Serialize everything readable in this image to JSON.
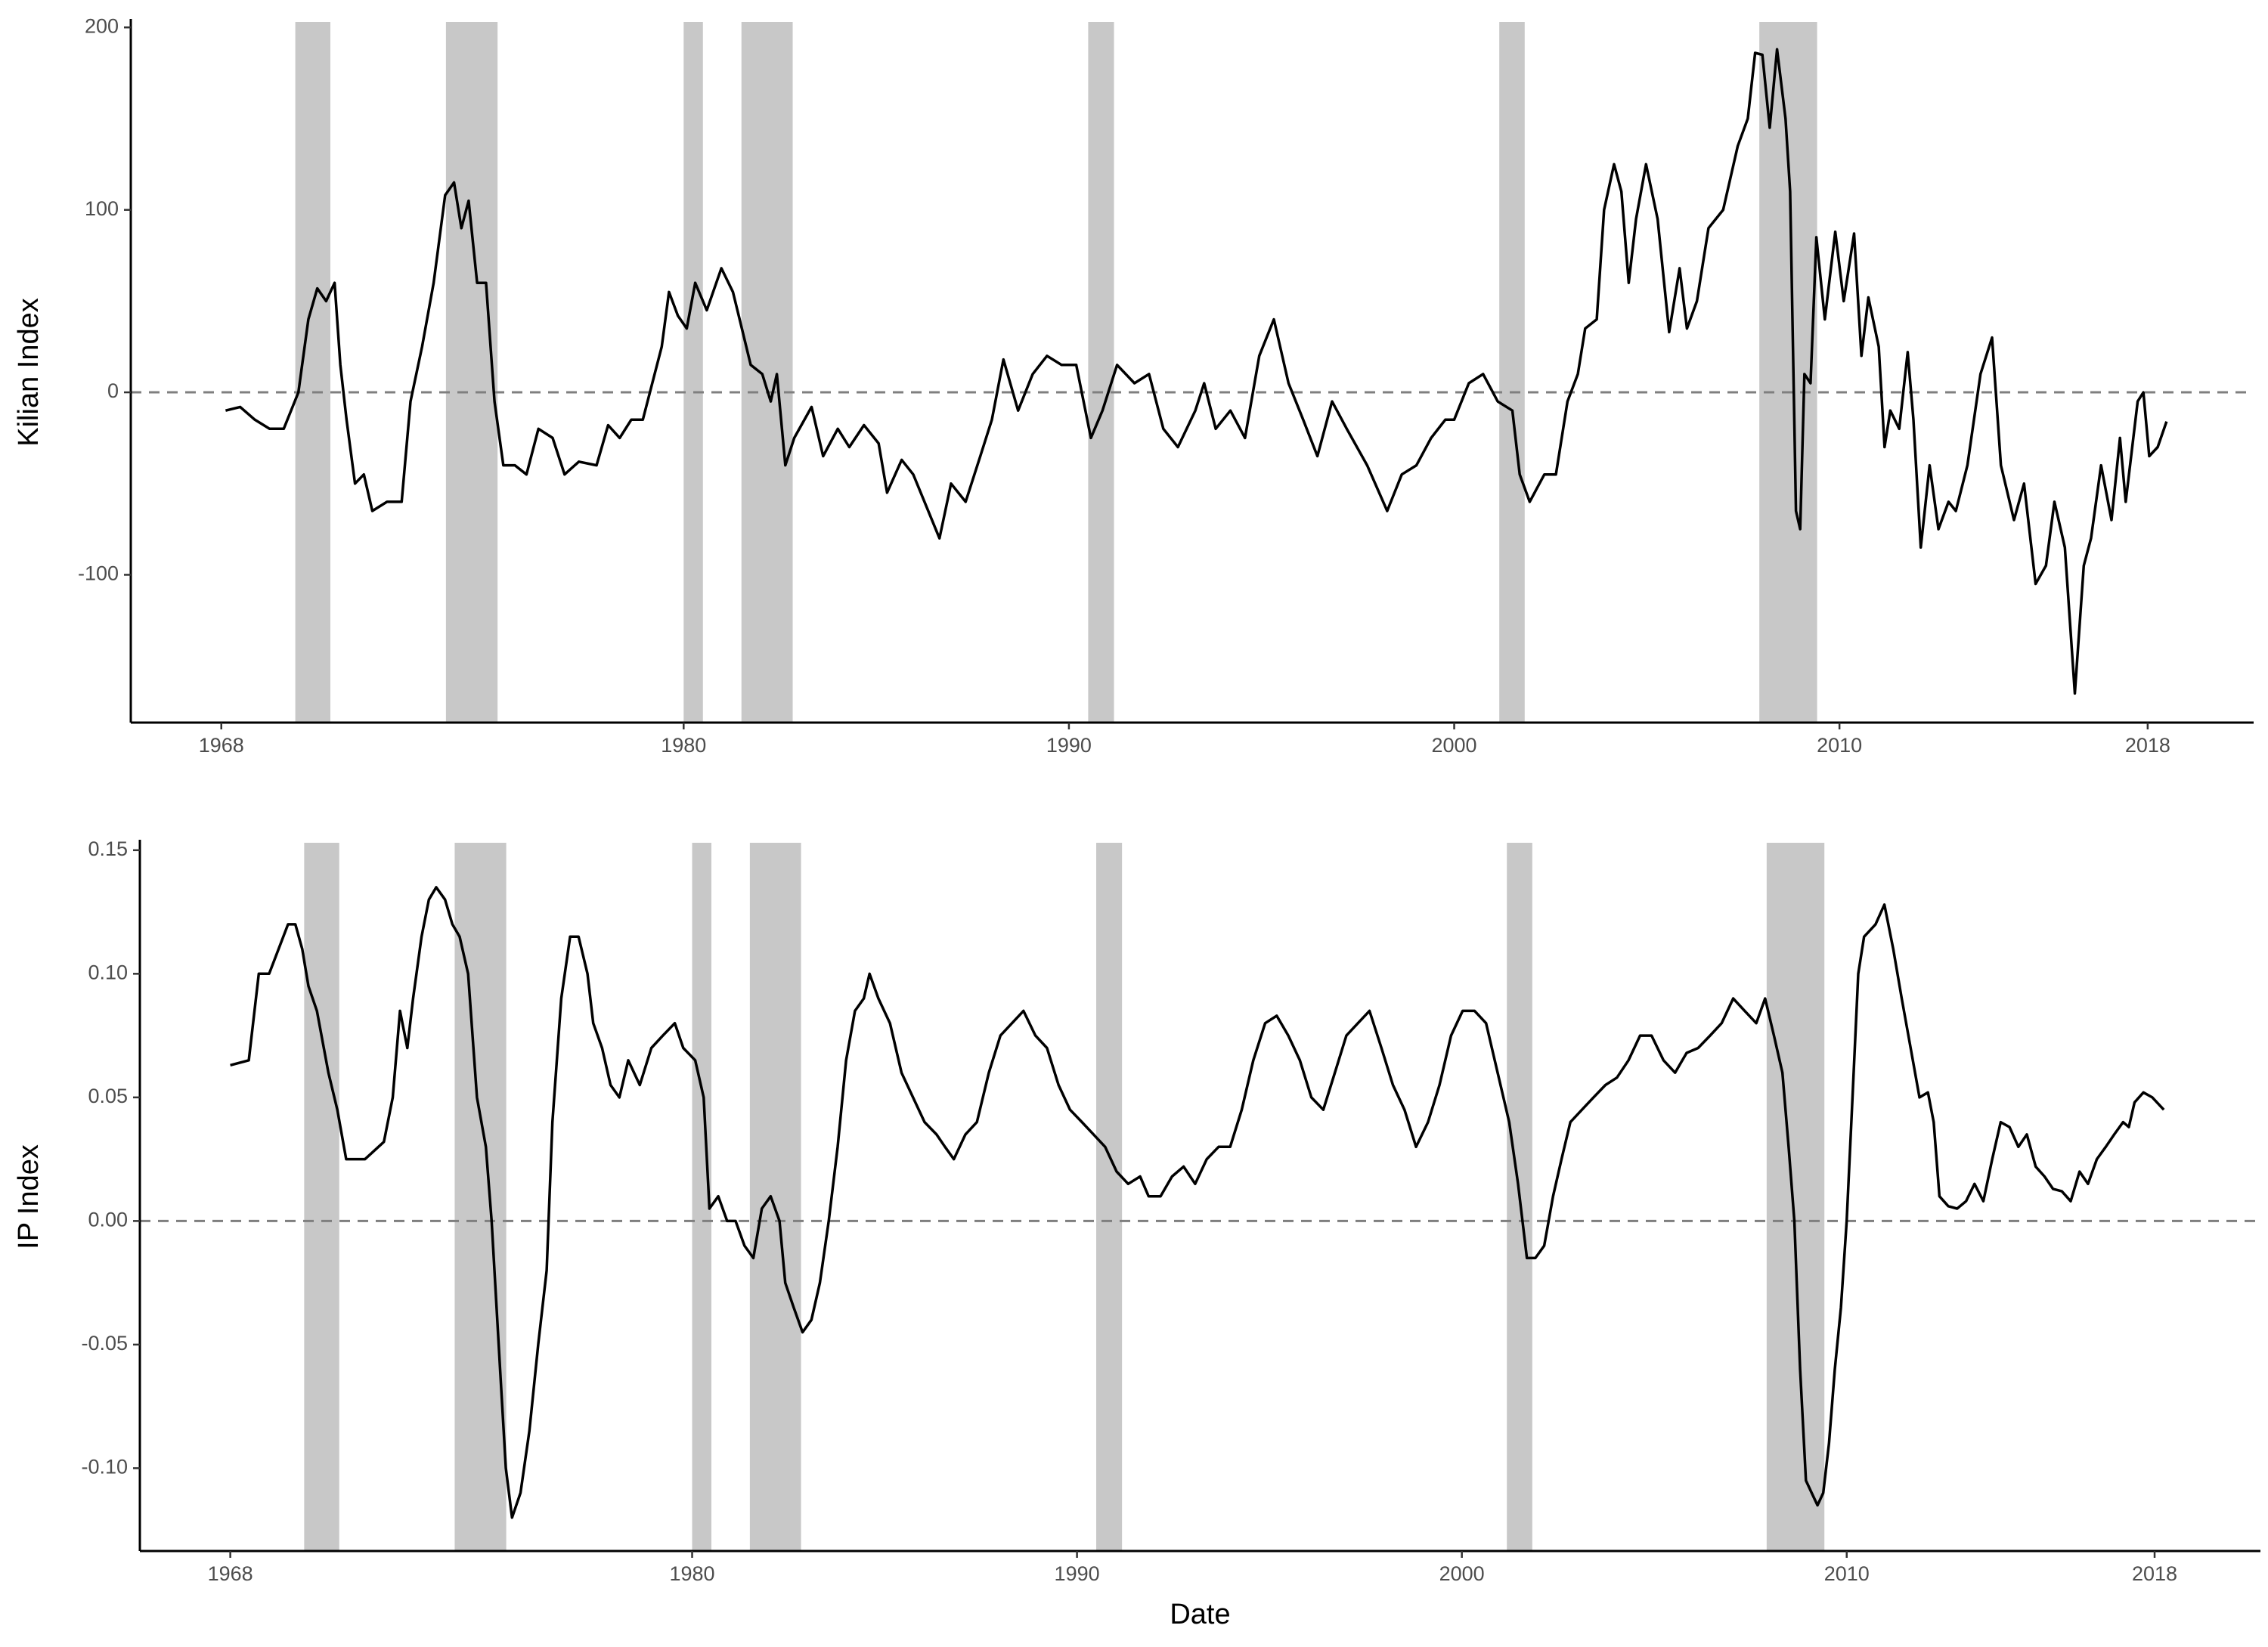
{
  "chart_data": [
    {
      "type": "line",
      "ylabel": "Kilian Index",
      "xlim": [
        1965.65,
        2020.75
      ],
      "xticks": [
        1968,
        1980,
        1990,
        2000,
        2010,
        2018
      ],
      "ylim": [
        -181,
        203
      ],
      "yticks": [
        -100,
        0,
        100,
        200
      ],
      "reference_line": 0,
      "shade_color": "#c8c8c8",
      "shaded_periods": [
        [
          1969.92,
          1970.83
        ],
        [
          1973.83,
          1975.17
        ],
        [
          1980.0,
          1980.5
        ],
        [
          1981.5,
          1982.83
        ],
        [
          1990.5,
          1991.17
        ],
        [
          2001.17,
          2001.83
        ],
        [
          2007.92,
          2009.42
        ]
      ],
      "x": [
        1968.11,
        1968.49,
        1968.87,
        1969.25,
        1969.62,
        1970.0,
        1970.26,
        1970.49,
        1970.72,
        1970.94,
        1971.09,
        1971.25,
        1971.47,
        1971.7,
        1971.92,
        1972.3,
        1972.68,
        1972.91,
        1973.21,
        1973.51,
        1973.81,
        1974.04,
        1974.23,
        1974.42,
        1974.64,
        1974.87,
        1975.09,
        1975.32,
        1975.62,
        1975.92,
        1976.23,
        1976.6,
        1976.91,
        1977.28,
        1977.74,
        1978.04,
        1978.34,
        1978.64,
        1978.94,
        1979.43,
        1979.62,
        1979.85,
        1980.08,
        1980.3,
        1980.6,
        1980.98,
        1981.28,
        1981.51,
        1981.74,
        1982.04,
        1982.26,
        1982.42,
        1982.64,
        1982.87,
        1983.32,
        1983.62,
        1984.0,
        1984.3,
        1984.68,
        1985.06,
        1985.28,
        1985.66,
        1985.96,
        1986.64,
        1986.94,
        1987.32,
        1987.7,
        1988.0,
        1988.3,
        1988.68,
        1989.06,
        1989.43,
        1989.81,
        1990.19,
        1990.57,
        1990.87,
        1991.25,
        1991.7,
        1992.08,
        1992.45,
        1992.83,
        1993.28,
        1993.51,
        1993.81,
        1994.19,
        1994.57,
        1994.94,
        1995.32,
        1995.7,
        1996.08,
        1996.45,
        1996.83,
        1997.21,
        1997.74,
        1998.26,
        1998.64,
        1999.02,
        1999.4,
        1999.77,
        2000.0,
        2000.38,
        2000.75,
        2001.13,
        2001.51,
        2001.7,
        2001.96,
        2002.34,
        2002.64,
        2002.94,
        2003.21,
        2003.4,
        2003.7,
        2003.89,
        2004.15,
        2004.34,
        2004.53,
        2004.72,
        2004.98,
        2005.28,
        2005.58,
        2005.85,
        2006.04,
        2006.3,
        2006.6,
        2006.98,
        2007.36,
        2007.62,
        2007.81,
        2008.0,
        2008.19,
        2008.38,
        2008.6,
        2008.72,
        2008.87,
        2008.98,
        2009.09,
        2009.25,
        2009.4,
        2009.62,
        2009.89,
        2010.11,
        2010.38,
        2010.57,
        2010.75,
        2011.02,
        2011.17,
        2011.32,
        2011.55,
        2011.77,
        2011.92,
        2012.11,
        2012.34,
        2012.57,
        2012.83,
        2013.02,
        2013.32,
        2013.66,
        2013.96,
        2014.19,
        2014.53,
        2014.79,
        2015.09,
        2015.36,
        2015.58,
        2015.85,
        2016.11,
        2016.34,
        2016.53,
        2016.79,
        2017.06,
        2017.28,
        2017.43,
        2017.74,
        2017.89,
        2018.04,
        2018.26,
        2018.49
      ],
      "series": [
        {
          "color": "#000000",
          "values": [
            -10,
            -8,
            -15,
            -20,
            -20,
            0,
            40,
            57,
            50,
            60,
            15,
            -15,
            -50,
            -45,
            -65,
            -60,
            -60,
            -5,
            25,
            60,
            108,
            115,
            90,
            105,
            60,
            60,
            -5,
            -40,
            -40,
            -45,
            -20,
            -25,
            -45,
            -38,
            -40,
            -18,
            -25,
            -15,
            -15,
            25,
            55,
            42,
            35,
            60,
            45,
            68,
            55,
            35,
            15,
            10,
            -5,
            10,
            -40,
            -25,
            -8,
            -35,
            -20,
            -30,
            -18,
            -28,
            -55,
            -37,
            -45,
            -80,
            -50,
            -60,
            -35,
            -15,
            18,
            -10,
            10,
            20,
            15,
            15,
            -25,
            -10,
            15,
            5,
            10,
            -20,
            -30,
            -10,
            5,
            -20,
            -10,
            -25,
            20,
            40,
            5,
            -15,
            -35,
            -5,
            -20,
            -40,
            -65,
            -45,
            -40,
            -25,
            -15,
            -15,
            5,
            10,
            -5,
            -10,
            -45,
            -60,
            -45,
            -45,
            -5,
            10,
            35,
            40,
            100,
            125,
            110,
            60,
            95,
            125,
            95,
            33,
            68,
            35,
            50,
            90,
            100,
            135,
            150,
            186,
            185,
            145,
            188,
            150,
            110,
            -65,
            -75,
            10,
            5,
            85,
            40,
            88,
            50,
            87,
            20,
            52,
            25,
            -30,
            -10,
            -20,
            22,
            -15,
            -85,
            -40,
            -75,
            -60,
            -65,
            -40,
            10,
            30,
            -40,
            -70,
            -50,
            -105,
            -95,
            -60,
            -85,
            -165,
            -95,
            -80,
            -40,
            -70,
            -25,
            -60,
            -5,
            0,
            -35,
            -30,
            -16
          ]
        }
      ]
    },
    {
      "type": "line",
      "ylabel": "IP Index",
      "xlabel": "Date",
      "xlim": [
        1965.65,
        2020.75
      ],
      "xticks": [
        1968,
        1980,
        1990,
        2000,
        2010,
        2018
      ],
      "ylim": [
        -0.1335,
        0.153
      ],
      "yticks": [
        {
          "value": -0.1,
          "label": "-0.10"
        },
        -0.05,
        {
          "value": 0,
          "label": "0.00"
        },
        0.05,
        {
          "value": 0.1,
          "label": "0.10"
        },
        0.15
      ],
      "reference_line": 0,
      "shade_color": "#c8c8c8",
      "shaded_periods": [
        [
          1969.92,
          1970.83
        ],
        [
          1973.83,
          1975.17
        ],
        [
          1980.0,
          1980.5
        ],
        [
          1981.5,
          1982.83
        ],
        [
          1990.5,
          1991.17
        ],
        [
          2001.17,
          2001.83
        ],
        [
          2007.92,
          2009.42
        ]
      ],
      "x": [
        1968.0,
        1968.48,
        1968.74,
        1969.01,
        1969.5,
        1969.69,
        1969.87,
        1970.03,
        1970.25,
        1970.55,
        1970.78,
        1971.01,
        1971.5,
        1971.99,
        1972.22,
        1972.41,
        1972.6,
        1972.75,
        1972.97,
        1973.16,
        1973.35,
        1973.58,
        1973.77,
        1973.96,
        1974.18,
        1974.41,
        1974.64,
        1974.79,
        1975.01,
        1975.16,
        1975.32,
        1975.54,
        1975.77,
        1976.0,
        1976.22,
        1976.37,
        1976.6,
        1976.83,
        1977.05,
        1977.28,
        1977.43,
        1977.66,
        1977.88,
        1978.11,
        1978.34,
        1978.64,
        1978.94,
        1979.24,
        1979.55,
        1979.77,
        1980.08,
        1980.3,
        1980.45,
        1980.68,
        1980.91,
        1981.13,
        1981.36,
        1981.59,
        1981.81,
        1982.04,
        1982.27,
        1982.42,
        1982.64,
        1982.87,
        1983.1,
        1983.32,
        1983.55,
        1983.78,
        1984.0,
        1984.23,
        1984.46,
        1984.61,
        1984.84,
        1985.14,
        1985.44,
        1985.74,
        1986.04,
        1986.35,
        1986.57,
        1986.8,
        1987.1,
        1987.4,
        1987.71,
        1988.01,
        1988.31,
        1988.61,
        1988.92,
        1989.22,
        1989.52,
        1989.82,
        1990.13,
        1990.43,
        1990.73,
        1991.03,
        1991.33,
        1991.64,
        1991.86,
        1992.17,
        1992.47,
        1992.77,
        1993.07,
        1993.37,
        1993.68,
        1993.98,
        1994.28,
        1994.58,
        1994.89,
        1995.19,
        1995.49,
        1995.79,
        1996.09,
        1996.4,
        1996.7,
        1997.0,
        1997.3,
        1997.6,
        1997.91,
        1998.21,
        1998.51,
        1998.81,
        1999.12,
        1999.42,
        1999.72,
        2000.02,
        2000.33,
        2000.63,
        2000.93,
        2001.23,
        2001.46,
        2001.69,
        2001.91,
        2002.14,
        2002.37,
        2002.59,
        2002.82,
        2003.12,
        2003.42,
        2003.73,
        2004.03,
        2004.33,
        2004.63,
        2004.93,
        2005.24,
        2005.54,
        2005.84,
        2006.14,
        2006.45,
        2006.75,
        2007.05,
        2007.35,
        2007.65,
        2007.88,
        2008.11,
        2008.33,
        2008.49,
        2008.64,
        2008.79,
        2008.94,
        2009.09,
        2009.24,
        2009.39,
        2009.54,
        2009.69,
        2009.85,
        2010.0,
        2010.15,
        2010.3,
        2010.45,
        2010.75,
        2010.98,
        2011.21,
        2011.43,
        2011.66,
        2011.89,
        2012.11,
        2012.26,
        2012.41,
        2012.64,
        2012.87,
        2013.1,
        2013.32,
        2013.55,
        2013.78,
        2014.0,
        2014.23,
        2014.46,
        2014.68,
        2014.91,
        2015.14,
        2015.36,
        2015.59,
        2015.82,
        2016.05,
        2016.27,
        2016.5,
        2016.73,
        2016.95,
        2017.18,
        2017.33,
        2017.48,
        2017.71,
        2017.94,
        2018.24
      ],
      "series": [
        {
          "color": "#000000",
          "values": [
            0.063,
            0.065,
            0.1,
            0.1,
            0.12,
            0.12,
            0.11,
            0.095,
            0.085,
            0.06,
            0.045,
            0.025,
            0.025,
            0.032,
            0.05,
            0.085,
            0.07,
            0.09,
            0.115,
            0.13,
            0.135,
            0.13,
            0.12,
            0.115,
            0.1,
            0.05,
            0.03,
            0.0,
            -0.06,
            -0.1,
            -0.12,
            -0.11,
            -0.085,
            -0.05,
            -0.02,
            0.04,
            0.09,
            0.115,
            0.115,
            0.1,
            0.08,
            0.07,
            0.055,
            0.05,
            0.065,
            0.055,
            0.07,
            0.075,
            0.08,
            0.07,
            0.065,
            0.05,
            0.005,
            0.01,
            0.0,
            0.0,
            -0.01,
            -0.015,
            0.005,
            0.01,
            0.0,
            -0.025,
            -0.035,
            -0.045,
            -0.04,
            -0.025,
            0.0,
            0.03,
            0.065,
            0.085,
            0.09,
            0.1,
            0.09,
            0.08,
            0.06,
            0.05,
            0.04,
            0.035,
            0.03,
            0.025,
            0.035,
            0.04,
            0.06,
            0.075,
            0.08,
            0.085,
            0.075,
            0.07,
            0.055,
            0.045,
            0.04,
            0.035,
            0.03,
            0.02,
            0.015,
            0.018,
            0.01,
            0.01,
            0.018,
            0.022,
            0.015,
            0.025,
            0.03,
            0.03,
            0.045,
            0.065,
            0.08,
            0.083,
            0.075,
            0.065,
            0.05,
            0.045,
            0.06,
            0.075,
            0.08,
            0.085,
            0.07,
            0.055,
            0.045,
            0.03,
            0.04,
            0.055,
            0.075,
            0.085,
            0.085,
            0.08,
            0.06,
            0.04,
            0.015,
            -0.015,
            -0.015,
            -0.01,
            0.01,
            0.025,
            0.04,
            0.045,
            0.05,
            0.055,
            0.058,
            0.065,
            0.075,
            0.075,
            0.065,
            0.06,
            0.068,
            0.07,
            0.075,
            0.08,
            0.09,
            0.085,
            0.08,
            0.09,
            0.075,
            0.06,
            0.03,
            0.0,
            -0.06,
            -0.105,
            -0.11,
            -0.115,
            -0.11,
            -0.09,
            -0.06,
            -0.035,
            0.0,
            0.05,
            0.1,
            0.115,
            0.12,
            0.128,
            0.11,
            0.09,
            0.07,
            0.05,
            0.052,
            0.04,
            0.01,
            0.006,
            0.005,
            0.008,
            0.015,
            0.008,
            0.025,
            0.04,
            0.038,
            0.03,
            0.035,
            0.022,
            0.018,
            0.013,
            0.012,
            0.008,
            0.02,
            0.015,
            0.025,
            0.03,
            0.035,
            0.04,
            0.038,
            0.048,
            0.052,
            0.05,
            0.045
          ]
        }
      ]
    }
  ]
}
